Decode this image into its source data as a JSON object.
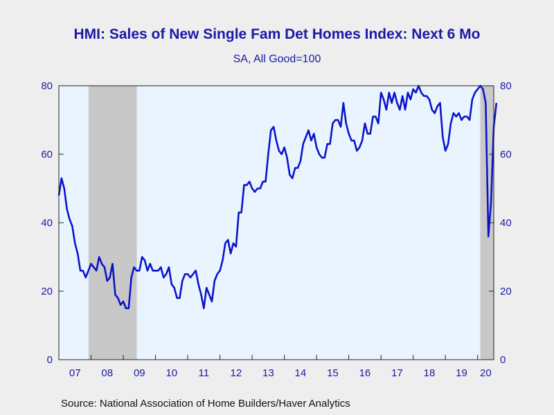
{
  "chart_data": {
    "type": "line",
    "title": "HMI: Sales of New Single Fam Det Homes Index: Next 6 Mo",
    "subtitle": "SA, All Good=100",
    "source": "Source:  National Association of Home Builders/Haver Analytics",
    "ylim": [
      0,
      80
    ],
    "yticks": [
      "0",
      "20",
      "40",
      "60",
      "80"
    ],
    "xlim": [
      2007.0,
      2020.5
    ],
    "year_labels": [
      "07",
      "08",
      "09",
      "10",
      "11",
      "12",
      "13",
      "14",
      "15",
      "16",
      "17",
      "18",
      "19",
      "20"
    ],
    "grid": false,
    "shaded_periods": [
      [
        2007.92,
        2009.42
      ],
      [
        2020.08,
        2020.5
      ]
    ],
    "colors": {
      "line": "#0a14c8",
      "plot_background": "#eaf4ff",
      "recession_shade": "#c8c8c8",
      "text": "#1a1aa6",
      "frame": "#222222"
    },
    "series": [
      {
        "start": "2007-01",
        "frequency": "monthly",
        "values": [
          48,
          53,
          50,
          44,
          41,
          39,
          34,
          31,
          26,
          26,
          24,
          26,
          28,
          27,
          26,
          30,
          28,
          27,
          23,
          24,
          28,
          19,
          18,
          16,
          17,
          15,
          15,
          24,
          27,
          26,
          26,
          30,
          29,
          26,
          28,
          26,
          26,
          26,
          27,
          24,
          25,
          27,
          22,
          21,
          18,
          18,
          23,
          25,
          25,
          24,
          25,
          26,
          22,
          19,
          15,
          21,
          19,
          17,
          23,
          25,
          26,
          29,
          34,
          35,
          31,
          34,
          33,
          43,
          43,
          51,
          51,
          52,
          50,
          49,
          50,
          50,
          52,
          52,
          60,
          67,
          68,
          64,
          61,
          60,
          62,
          59,
          54,
          53,
          56,
          56,
          58,
          63,
          65,
          67,
          64,
          66,
          62,
          60,
          59,
          59,
          63,
          63,
          69,
          70,
          70,
          68,
          75,
          69,
          66,
          64,
          64,
          61,
          62,
          64,
          69,
          66,
          66,
          71,
          71,
          69,
          78,
          76,
          73,
          78,
          75,
          78,
          75,
          73,
          77,
          73,
          78,
          76,
          79,
          78,
          80,
          78,
          77,
          77,
          76,
          73,
          72,
          74,
          75,
          65,
          61,
          63,
          69,
          72,
          71,
          72,
          70,
          71,
          71,
          70,
          76,
          78,
          79,
          80,
          79,
          75,
          36,
          46,
          68,
          75
        ]
      }
    ]
  }
}
